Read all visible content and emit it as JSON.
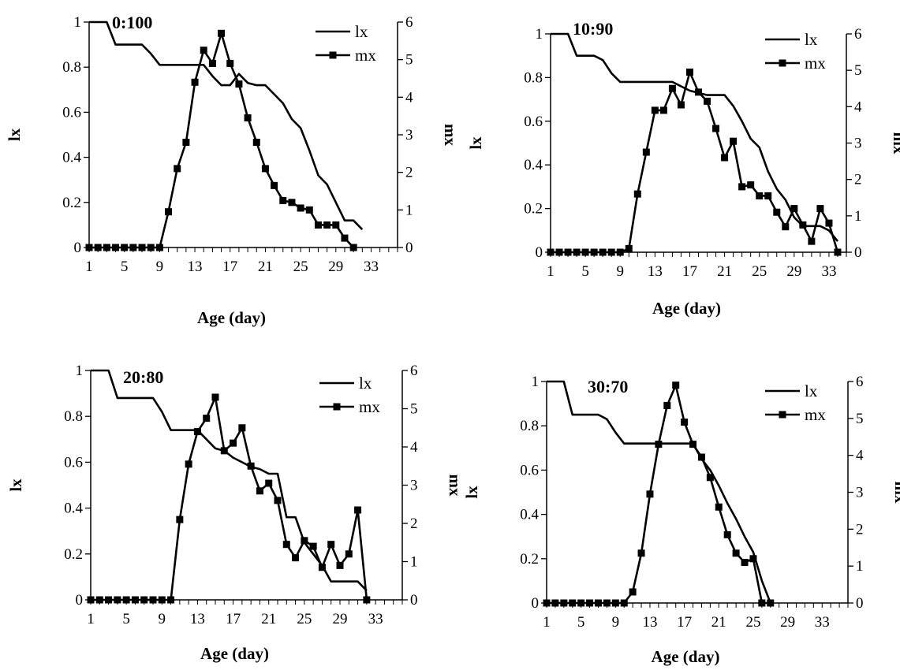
{
  "chart_data": [
    {
      "type": "line",
      "title": "0:100",
      "xlabel": "Age (day)",
      "ylabel": "lx",
      "y2label": "mx",
      "x_ticks": [
        "1",
        "5",
        "9",
        "13",
        "17",
        "21",
        "25",
        "29",
        "33"
      ],
      "xlim": [
        1,
        36
      ],
      "ylim": [
        0,
        1
      ],
      "y_ticks": [
        "0",
        "0.2",
        "0.4",
        "0.6",
        "0.8",
        "1"
      ],
      "y2lim": [
        0,
        6
      ],
      "y2_ticks": [
        "0",
        "1",
        "2",
        "3",
        "4",
        "5",
        "6"
      ],
      "legend_position": "top-right",
      "series": [
        {
          "name": "lx",
          "axis": "left",
          "marker": "none",
          "x": [
            1,
            2,
            3,
            4,
            5,
            6,
            7,
            8,
            9,
            10,
            11,
            12,
            13,
            14,
            15,
            16,
            17,
            18,
            19,
            20,
            21,
            22,
            23,
            24,
            25,
            26,
            27,
            28,
            29,
            30,
            31,
            32
          ],
          "values": [
            1,
            1,
            1,
            0.9,
            0.9,
            0.9,
            0.9,
            0.86,
            0.81,
            0.81,
            0.81,
            0.81,
            0.81,
            0.81,
            0.76,
            0.72,
            0.72,
            0.77,
            0.73,
            0.72,
            0.72,
            0.68,
            0.64,
            0.57,
            0.53,
            0.43,
            0.32,
            0.28,
            0.2,
            0.12,
            0.12,
            0.08
          ]
        },
        {
          "name": "mx",
          "axis": "right",
          "marker": "square",
          "x": [
            1,
            2,
            3,
            4,
            5,
            6,
            7,
            8,
            9,
            10,
            11,
            12,
            13,
            14,
            15,
            16,
            17,
            18,
            19,
            20,
            21,
            22,
            23,
            24,
            25,
            26,
            27,
            28,
            29,
            30,
            31
          ],
          "values": [
            0,
            0,
            0,
            0,
            0,
            0,
            0,
            0,
            0,
            0.95,
            2.1,
            2.8,
            4.4,
            5.25,
            4.9,
            5.7,
            4.9,
            4.35,
            3.45,
            2.8,
            2.1,
            1.65,
            1.25,
            1.2,
            1.05,
            1.0,
            0.6,
            0.6,
            0.6,
            0.25,
            0
          ]
        }
      ]
    },
    {
      "type": "line",
      "title": "10:90",
      "xlabel": "Age (day)",
      "ylabel": "lx",
      "y2label": "mx",
      "x_ticks": [
        "1",
        "5",
        "9",
        "13",
        "17",
        "21",
        "25",
        "29",
        "33"
      ],
      "xlim": [
        1,
        35
      ],
      "ylim": [
        0,
        1
      ],
      "y_ticks": [
        "0",
        "0.2",
        "0.4",
        "0.6",
        "0.8",
        "1"
      ],
      "y2lim": [
        0,
        6
      ],
      "y2_ticks": [
        "0",
        "1",
        "2",
        "3",
        "4",
        "5",
        "6"
      ],
      "legend_position": "top-right",
      "series": [
        {
          "name": "lx",
          "axis": "left",
          "marker": "none",
          "x": [
            1,
            2,
            3,
            4,
            5,
            6,
            7,
            8,
            9,
            10,
            11,
            12,
            13,
            14,
            15,
            16,
            17,
            18,
            19,
            20,
            21,
            22,
            23,
            24,
            25,
            26,
            27,
            28,
            29,
            30,
            31,
            32,
            33,
            34
          ],
          "values": [
            1,
            1,
            1,
            0.9,
            0.9,
            0.9,
            0.88,
            0.82,
            0.78,
            0.78,
            0.78,
            0.78,
            0.78,
            0.78,
            0.78,
            0.76,
            0.74,
            0.73,
            0.72,
            0.72,
            0.72,
            0.67,
            0.6,
            0.52,
            0.48,
            0.37,
            0.29,
            0.24,
            0.16,
            0.12,
            0.12,
            0.12,
            0.1,
            0.05
          ]
        },
        {
          "name": "mx",
          "axis": "right",
          "marker": "square",
          "x": [
            1,
            2,
            3,
            4,
            5,
            6,
            7,
            8,
            9,
            10,
            11,
            12,
            13,
            14,
            15,
            16,
            17,
            18,
            19,
            20,
            21,
            22,
            23,
            24,
            25,
            26,
            27,
            28,
            29,
            30,
            31,
            32,
            33,
            34
          ],
          "values": [
            0,
            0,
            0,
            0,
            0,
            0,
            0,
            0,
            0,
            0.1,
            1.6,
            2.75,
            3.9,
            3.9,
            4.5,
            4.05,
            4.95,
            4.4,
            4.15,
            3.4,
            2.6,
            3.05,
            1.8,
            1.85,
            1.55,
            1.55,
            1.1,
            0.7,
            1.2,
            0.75,
            0.3,
            1.2,
            0.8,
            0
          ]
        }
      ]
    },
    {
      "type": "line",
      "title": "20:80",
      "xlabel": "Age (day)",
      "ylabel": "lx",
      "y2label": "mx",
      "x_ticks": [
        "1",
        "5",
        "9",
        "13",
        "17",
        "21",
        "25",
        "29",
        "33"
      ],
      "xlim": [
        1,
        36
      ],
      "ylim": [
        0,
        1
      ],
      "y_ticks": [
        "0",
        "0.2",
        "0.4",
        "0.6",
        "0.8",
        "1"
      ],
      "y2lim": [
        0,
        6
      ],
      "y2_ticks": [
        "0",
        "1",
        "2",
        "3",
        "4",
        "5",
        "6"
      ],
      "legend_position": "top-right",
      "series": [
        {
          "name": "lx",
          "axis": "left",
          "marker": "none",
          "x": [
            1,
            2,
            3,
            4,
            5,
            6,
            7,
            8,
            9,
            10,
            11,
            12,
            13,
            14,
            15,
            16,
            17,
            18,
            19,
            20,
            21,
            22,
            23,
            24,
            25,
            26,
            27,
            28,
            29,
            30,
            31,
            32
          ],
          "values": [
            1,
            1,
            1,
            0.88,
            0.88,
            0.88,
            0.88,
            0.88,
            0.82,
            0.74,
            0.74,
            0.74,
            0.74,
            0.7,
            0.66,
            0.65,
            0.62,
            0.6,
            0.58,
            0.57,
            0.55,
            0.55,
            0.36,
            0.36,
            0.25,
            0.2,
            0.15,
            0.08,
            0.08,
            0.08,
            0.08,
            0.04
          ]
        },
        {
          "name": "mx",
          "axis": "right",
          "marker": "square",
          "x": [
            1,
            2,
            3,
            4,
            5,
            6,
            7,
            8,
            9,
            10,
            11,
            12,
            13,
            14,
            15,
            16,
            17,
            18,
            19,
            20,
            21,
            22,
            23,
            24,
            25,
            26,
            27,
            28,
            29,
            30,
            31,
            32
          ],
          "values": [
            0,
            0,
            0,
            0,
            0,
            0,
            0,
            0,
            0,
            0,
            2.1,
            3.55,
            4.4,
            4.75,
            5.3,
            3.9,
            4.1,
            4.5,
            3.5,
            2.85,
            3.05,
            2.6,
            1.45,
            1.1,
            1.55,
            1.4,
            0.85,
            1.45,
            0.9,
            1.2,
            2.35,
            0
          ]
        }
      ]
    },
    {
      "type": "line",
      "title": "30:70",
      "xlabel": "Age (day)",
      "ylabel": "lx",
      "y2label": "mx",
      "x_ticks": [
        "1",
        "5",
        "9",
        "13",
        "17",
        "21",
        "25",
        "29",
        "33"
      ],
      "xlim": [
        1,
        36
      ],
      "ylim": [
        0,
        1
      ],
      "y_ticks": [
        "0",
        "0.2",
        "0.4",
        "0.6",
        "0.8",
        "1"
      ],
      "y2lim": [
        0,
        6
      ],
      "y2_ticks": [
        "0",
        "1",
        "2",
        "3",
        "4",
        "5",
        "6"
      ],
      "legend_position": "top-right",
      "series": [
        {
          "name": "lx",
          "axis": "left",
          "marker": "none",
          "x": [
            1,
            2,
            3,
            4,
            5,
            6,
            7,
            8,
            9,
            10,
            11,
            12,
            13,
            14,
            15,
            16,
            17,
            18,
            19,
            20,
            21,
            22,
            23,
            24,
            25,
            26,
            27
          ],
          "values": [
            1,
            1,
            1,
            0.85,
            0.85,
            0.85,
            0.85,
            0.83,
            0.77,
            0.72,
            0.72,
            0.72,
            0.72,
            0.72,
            0.72,
            0.72,
            0.72,
            0.72,
            0.65,
            0.6,
            0.53,
            0.45,
            0.38,
            0.3,
            0.23,
            0.1,
            0
          ]
        },
        {
          "name": "mx",
          "axis": "right",
          "marker": "square",
          "x": [
            1,
            2,
            3,
            4,
            5,
            6,
            7,
            8,
            9,
            10,
            11,
            12,
            13,
            14,
            15,
            16,
            17,
            18,
            19,
            20,
            21,
            22,
            23,
            24,
            25,
            26,
            27
          ],
          "values": [
            0,
            0,
            0,
            0,
            0,
            0,
            0,
            0,
            0,
            0,
            0.3,
            1.35,
            2.95,
            4.3,
            5.35,
            5.9,
            4.9,
            4.3,
            3.95,
            3.4,
            2.6,
            1.85,
            1.35,
            1.1,
            1.2,
            0,
            0
          ]
        }
      ]
    }
  ]
}
